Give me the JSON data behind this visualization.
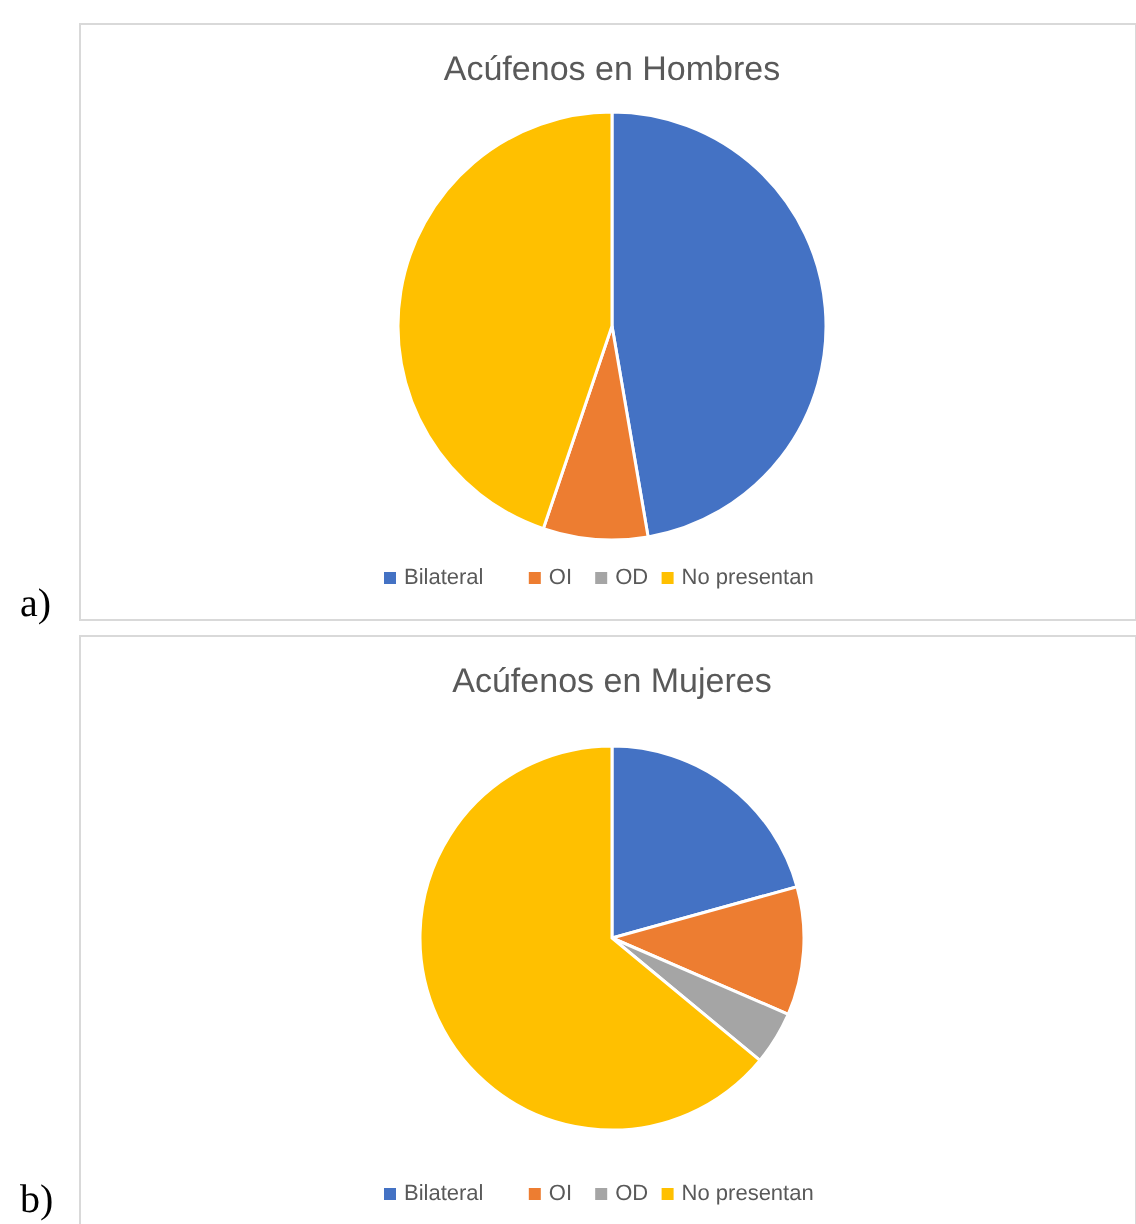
{
  "chart_data": [
    {
      "type": "pie",
      "title": "Acúfenos en Hombres",
      "categories": [
        "Bilateral",
        "OI",
        "OD",
        "No presentan"
      ],
      "values": [
        47.3,
        7.9,
        0,
        44.8
      ],
      "colors": [
        "#4472c4",
        "#ed7d31",
        "#a5a5a5",
        "#ffc000"
      ],
      "legend": "bottom",
      "annotations": [
        "a)"
      ]
    },
    {
      "type": "pie",
      "title": "Acúfenos en Mujeres",
      "categories": [
        "Bilateral",
        "OI",
        "OD",
        "No presentan"
      ],
      "values": [
        20.7,
        10.8,
        4.5,
        64.0
      ],
      "colors": [
        "#4472c4",
        "#ed7d31",
        "#a5a5a5",
        "#ffc000"
      ],
      "legend": "bottom",
      "annotations": [
        "b)"
      ]
    }
  ]
}
